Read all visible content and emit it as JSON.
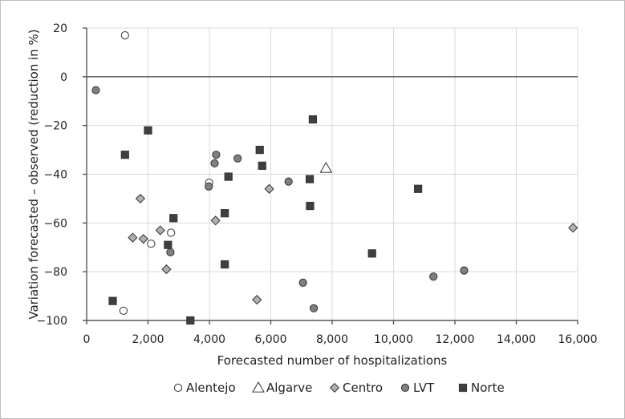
{
  "chart_data": {
    "type": "scatter",
    "xlabel": "Forecasted number of hospitalizations",
    "ylabel": "Variation forecasted – observed (reduction in %)",
    "xlim": [
      0,
      16000
    ],
    "ylim": [
      -100,
      20
    ],
    "xticks": [
      0,
      2000,
      4000,
      6000,
      8000,
      10000,
      12000,
      14000,
      16000
    ],
    "xtick_labels": [
      "0",
      "2,000",
      "4,000",
      "6,000",
      "8,000",
      "10,000",
      "12,000",
      "14,000",
      "16,000"
    ],
    "yticks": [
      -100,
      -80,
      -60,
      -40,
      -20,
      0,
      20
    ],
    "ytick_labels": [
      "−100",
      "−80",
      "−60",
      "−40",
      "−20",
      "0",
      "20"
    ],
    "grid": true,
    "legend_position": "bottom",
    "series": [
      {
        "name": "Alentejo",
        "marker": "circle-open",
        "color": "#ffffff",
        "points": [
          [
            1250,
            17
          ],
          [
            2100,
            -68.5
          ],
          [
            2750,
            -64
          ],
          [
            3990,
            -43.5
          ],
          [
            1200,
            -96
          ]
        ]
      },
      {
        "name": "Algarve",
        "marker": "triangle-open",
        "color": "#ffffff",
        "points": [
          [
            7800,
            -37.5
          ]
        ]
      },
      {
        "name": "Centro",
        "marker": "diamond",
        "color": "#b0b0b0",
        "points": [
          [
            1750,
            -50
          ],
          [
            1500,
            -66
          ],
          [
            1850,
            -66.5
          ],
          [
            2400,
            -63
          ],
          [
            2600,
            -79
          ],
          [
            4200,
            -59
          ],
          [
            5950,
            -46
          ],
          [
            5550,
            -91.5
          ],
          [
            15850,
            -62
          ]
        ]
      },
      {
        "name": "LVT",
        "marker": "circle",
        "color": "#7f7f7f",
        "points": [
          [
            300,
            -5.5
          ],
          [
            4220,
            -32
          ],
          [
            4170,
            -35.5
          ],
          [
            4920,
            -33.5
          ],
          [
            3980,
            -45
          ],
          [
            6580,
            -43
          ],
          [
            2730,
            -72
          ],
          [
            7050,
            -84.5
          ],
          [
            7400,
            -95
          ],
          [
            11300,
            -82
          ],
          [
            12300,
            -79.5
          ]
        ]
      },
      {
        "name": "Norte",
        "marker": "square",
        "color": "#3f3f3f",
        "points": [
          [
            2000,
            -22
          ],
          [
            1250,
            -32
          ],
          [
            2830,
            -58
          ],
          [
            2650,
            -69
          ],
          [
            3380,
            -100
          ],
          [
            850,
            -92
          ],
          [
            4500,
            -56
          ],
          [
            4500,
            -77
          ],
          [
            4620,
            -41
          ],
          [
            5640,
            -30
          ],
          [
            5720,
            -36.5
          ],
          [
            7370,
            -17.5
          ],
          [
            7270,
            -42
          ],
          [
            7280,
            -53
          ],
          [
            9300,
            -72.5
          ],
          [
            10800,
            -46
          ]
        ]
      }
    ]
  }
}
